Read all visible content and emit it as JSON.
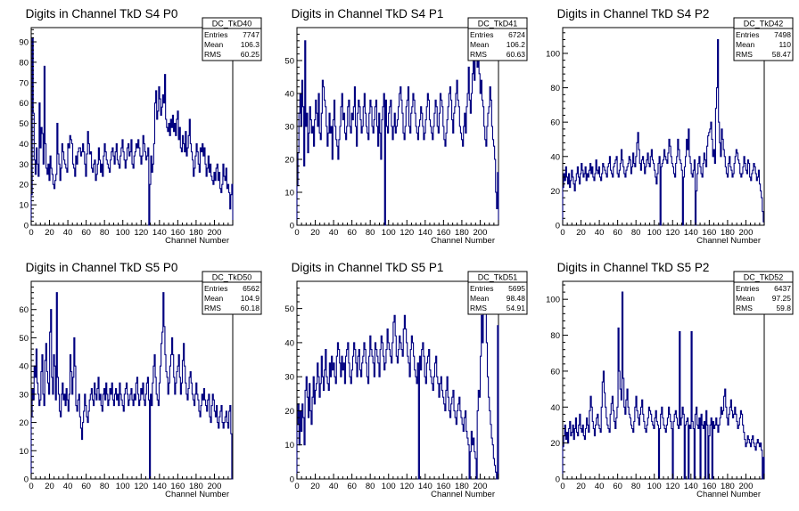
{
  "chart_data": [
    {
      "type": "histogram",
      "title": "Digits in Channel TkD S4 P0",
      "xlabel": "Channel Number",
      "ylabel": "",
      "xlim": [
        0,
        220
      ],
      "ylim": [
        0,
        97
      ],
      "xticks": [
        0,
        20,
        40,
        60,
        80,
        100,
        120,
        140,
        160,
        180,
        200
      ],
      "yticks": [
        0,
        10,
        20,
        30,
        40,
        50,
        60,
        70,
        80,
        90
      ],
      "stats": {
        "name": "DC_TkD40",
        "entries": "7747",
        "mean": "106.3",
        "rms": "60.25"
      },
      "stats_labels": {
        "entries": "Entries",
        "mean": "Mean",
        "rms": "RMS"
      },
      "values": [
        15,
        92,
        55,
        32,
        25,
        38,
        30,
        24,
        60,
        38,
        48,
        45,
        30,
        78,
        40,
        28,
        25,
        30,
        22,
        34,
        28,
        25,
        20,
        18,
        22,
        25,
        50,
        35,
        30,
        22,
        28,
        40,
        36,
        32,
        30,
        28,
        26,
        40,
        38,
        44,
        42,
        40,
        30,
        28,
        24,
        34,
        30,
        36,
        38,
        38,
        34,
        36,
        40,
        36,
        30,
        24,
        35,
        46,
        40,
        35,
        36,
        28,
        26,
        30,
        32,
        22,
        25,
        30,
        38,
        32,
        26,
        30,
        24,
        34,
        40,
        36,
        32,
        30,
        28,
        26,
        32,
        36,
        38,
        34,
        30,
        36,
        40,
        32,
        30,
        28,
        34,
        38,
        42,
        36,
        32,
        28,
        32,
        38,
        40,
        34,
        36,
        42,
        30,
        28,
        34,
        36,
        40,
        38,
        42,
        38,
        34,
        30,
        34,
        44,
        40,
        36,
        32,
        34,
        38,
        0,
        20,
        34,
        26,
        30,
        40,
        60,
        66,
        52,
        56,
        68,
        62,
        54,
        58,
        64,
        60,
        74,
        52,
        48,
        46,
        50,
        44,
        52,
        48,
        54,
        46,
        50,
        44,
        52,
        56,
        42,
        48,
        38,
        36,
        44,
        40,
        36,
        46,
        34,
        38,
        44,
        52,
        40,
        36,
        32,
        24,
        28,
        34,
        40,
        36,
        30,
        26,
        38,
        36,
        40,
        34,
        38,
        30,
        24,
        28,
        34,
        26,
        30,
        24,
        22,
        20,
        26,
        22,
        28,
        30,
        22,
        26,
        18,
        16,
        20,
        30,
        24,
        22,
        28,
        18,
        20,
        16,
        8,
        15,
        20
      ]
    },
    {
      "type": "histogram",
      "title": "Digits in Channel TkD S4 P1",
      "xlabel": "Channel Number",
      "ylabel": "",
      "xlim": [
        0,
        220
      ],
      "ylim": [
        0,
        60
      ],
      "xticks": [
        0,
        20,
        40,
        60,
        80,
        100,
        120,
        140,
        160,
        180,
        200
      ],
      "yticks": [
        0,
        10,
        20,
        30,
        40,
        50
      ],
      "stats": {
        "name": "DC_TkD41",
        "entries": "6724",
        "mean": "106.2",
        "rms": "60.63"
      },
      "stats_labels": {
        "entries": "Entries",
        "mean": "Mean",
        "rms": "RMS"
      },
      "values": [
        12,
        22,
        34,
        40,
        30,
        44,
        36,
        18,
        56,
        30,
        34,
        22,
        28,
        36,
        32,
        28,
        30,
        24,
        32,
        38,
        34,
        30,
        40,
        28,
        26,
        34,
        44,
        42,
        38,
        36,
        30,
        24,
        28,
        34,
        28,
        30,
        20,
        32,
        38,
        30,
        26,
        24,
        20,
        26,
        30,
        36,
        40,
        32,
        34,
        28,
        26,
        30,
        36,
        38,
        30,
        28,
        34,
        32,
        36,
        42,
        30,
        24,
        34,
        38,
        36,
        32,
        28,
        30,
        36,
        40,
        34,
        30,
        28,
        26,
        34,
        38,
        36,
        30,
        28,
        32,
        36,
        38,
        30,
        24,
        34,
        28,
        20,
        32,
        36,
        40,
        0,
        38,
        30,
        28,
        34,
        36,
        38,
        30,
        26,
        30,
        34,
        28,
        30,
        32,
        36,
        40,
        42,
        38,
        34,
        28,
        26,
        30,
        36,
        38,
        42,
        30,
        28,
        34,
        36,
        40,
        38,
        34,
        30,
        28,
        26,
        30,
        32,
        36,
        34,
        30,
        26,
        28,
        32,
        36,
        40,
        38,
        32,
        30,
        28,
        26,
        30,
        34,
        38,
        36,
        30,
        28,
        34,
        40,
        38,
        36,
        30,
        26,
        24,
        28,
        32,
        36,
        40,
        42,
        38,
        32,
        28,
        34,
        36,
        40,
        44,
        38,
        36,
        30,
        28,
        26,
        24,
        30,
        34,
        28,
        36,
        40,
        48,
        38,
        34,
        40,
        46,
        50,
        44,
        54,
        50,
        48,
        52,
        46,
        40,
        44,
        38,
        36,
        30,
        26,
        24,
        30,
        34,
        36,
        42,
        38,
        30,
        26,
        24,
        20,
        10,
        5,
        16
      ]
    },
    {
      "type": "histogram",
      "title": "Digits in Channel TkD S4 P2",
      "xlabel": "Channel Number",
      "ylabel": "",
      "xlim": [
        0,
        220
      ],
      "ylim": [
        0,
        115
      ],
      "xticks": [
        0,
        20,
        40,
        60,
        80,
        100,
        120,
        140,
        160,
        180,
        200
      ],
      "yticks": [
        0,
        20,
        40,
        60,
        80,
        100
      ],
      "stats": {
        "name": "DC_TkD42",
        "entries": "7498",
        "mean": "110",
        "rms": "58.47"
      },
      "stats_labels": {
        "entries": "Entries",
        "mean": "Mean",
        "rms": "RMS"
      },
      "values": [
        22,
        30,
        26,
        34,
        28,
        24,
        30,
        22,
        26,
        32,
        28,
        24,
        20,
        26,
        30,
        34,
        28,
        24,
        30,
        36,
        32,
        28,
        30,
        34,
        26,
        30,
        28,
        32,
        36,
        30,
        34,
        28,
        26,
        30,
        38,
        32,
        30,
        34,
        28,
        26,
        30,
        36,
        34,
        32,
        30,
        28,
        34,
        36,
        40,
        32,
        30,
        28,
        34,
        36,
        38,
        40,
        30,
        28,
        32,
        36,
        44,
        38,
        34,
        30,
        28,
        32,
        34,
        36,
        40,
        38,
        30,
        34,
        42,
        36,
        34,
        40,
        48,
        54,
        44,
        36,
        32,
        38,
        40,
        36,
        30,
        34,
        38,
        42,
        36,
        34,
        40,
        44,
        38,
        36,
        32,
        28,
        24,
        30,
        36,
        40,
        0,
        34,
        36,
        38,
        44,
        40,
        38,
        36,
        42,
        50,
        46,
        40,
        36,
        34,
        30,
        28,
        36,
        40,
        50,
        44,
        38,
        36,
        32,
        0,
        28,
        34,
        40,
        50,
        44,
        56,
        40,
        36,
        30,
        28,
        32,
        38,
        0,
        20,
        30,
        36,
        40,
        34,
        30,
        28,
        36,
        42,
        38,
        34,
        46,
        52,
        54,
        56,
        60,
        50,
        40,
        44,
        36,
        68,
        80,
        108,
        60,
        48,
        40,
        56,
        50,
        44,
        40,
        34,
        30,
        28,
        36,
        40,
        34,
        32,
        28,
        30,
        36,
        40,
        44,
        42,
        38,
        36,
        30,
        28,
        30,
        34,
        40,
        36,
        32,
        30,
        38,
        36,
        28,
        26,
        30,
        32,
        36,
        34,
        30,
        26,
        28,
        32,
        24,
        20,
        16,
        8,
        2
      ]
    },
    {
      "type": "histogram",
      "title": "Digits in Channel TkD S5 P0",
      "xlabel": "Channel Number",
      "ylabel": "",
      "xlim": [
        0,
        220
      ],
      "ylim": [
        0,
        70
      ],
      "xticks": [
        0,
        20,
        40,
        60,
        80,
        100,
        120,
        140,
        160,
        180,
        200
      ],
      "yticks": [
        0,
        10,
        20,
        30,
        40,
        50,
        60
      ],
      "stats": {
        "name": "DC_TkD50",
        "entries": "6562",
        "mean": "104.9",
        "rms": "60.18"
      },
      "stats_labels": {
        "entries": "Entries",
        "mean": "Mean",
        "rms": "RMS"
      },
      "values": [
        22,
        32,
        28,
        40,
        36,
        46,
        34,
        30,
        26,
        28,
        38,
        44,
        30,
        26,
        42,
        48,
        38,
        34,
        30,
        52,
        60,
        36,
        30,
        44,
        40,
        28,
        66,
        36,
        30,
        24,
        22,
        30,
        34,
        28,
        30,
        26,
        32,
        28,
        24,
        30,
        44,
        38,
        30,
        36,
        50,
        40,
        26,
        24,
        28,
        30,
        22,
        18,
        14,
        20,
        24,
        30,
        26,
        22,
        20,
        24,
        28,
        30,
        32,
        28,
        26,
        34,
        30,
        28,
        32,
        36,
        28,
        30,
        26,
        24,
        30,
        32,
        28,
        34,
        30,
        26,
        28,
        32,
        30,
        34,
        28,
        26,
        30,
        32,
        28,
        30,
        26,
        34,
        30,
        28,
        26,
        24,
        30,
        32,
        34,
        30,
        26,
        28,
        30,
        32,
        28,
        26,
        30,
        28,
        34,
        36,
        30,
        26,
        28,
        32,
        30,
        34,
        28,
        26,
        30,
        34,
        36,
        28,
        0,
        30,
        26,
        34,
        40,
        44,
        36,
        30,
        28,
        26,
        34,
        40,
        48,
        52,
        66,
        54,
        44,
        38,
        36,
        30,
        34,
        40,
        44,
        50,
        44,
        36,
        30,
        34,
        38,
        40,
        44,
        36,
        30,
        34,
        42,
        48,
        40,
        34,
        30,
        28,
        32,
        36,
        38,
        34,
        30,
        28,
        26,
        30,
        34,
        30,
        28,
        24,
        22,
        26,
        30,
        28,
        32,
        28,
        26,
        24,
        28,
        30,
        22,
        20,
        26,
        30,
        28,
        24,
        22,
        26,
        20,
        18,
        22,
        24,
        26,
        20,
        18,
        20,
        22,
        24,
        20,
        18,
        24,
        26,
        16,
        0
      ]
    },
    {
      "type": "histogram",
      "title": "Digits in Channel TkD S5 P1",
      "xlabel": "Channel Number",
      "ylabel": "",
      "xlim": [
        0,
        220
      ],
      "ylim": [
        0,
        58
      ],
      "xticks": [
        0,
        20,
        40,
        60,
        80,
        100,
        120,
        140,
        160,
        180,
        200
      ],
      "yticks": [
        0,
        10,
        20,
        30,
        40,
        50
      ],
      "stats": {
        "name": "DC_TkD51",
        "entries": "5695",
        "mean": "98.48",
        "rms": "54.91"
      },
      "stats_labels": {
        "entries": "Entries",
        "mean": "Mean",
        "rms": "RMS"
      },
      "values": [
        16,
        22,
        10,
        20,
        14,
        22,
        18,
        10,
        26,
        30,
        24,
        18,
        28,
        20,
        16,
        24,
        30,
        22,
        26,
        28,
        34,
        30,
        24,
        28,
        36,
        30,
        26,
        32,
        38,
        30,
        28,
        26,
        34,
        30,
        36,
        32,
        34,
        30,
        28,
        36,
        40,
        38,
        34,
        30,
        36,
        32,
        34,
        28,
        36,
        38,
        40,
        34,
        30,
        28,
        32,
        36,
        40,
        38,
        34,
        30,
        36,
        38,
        32,
        30,
        34,
        36,
        40,
        38,
        34,
        30,
        28,
        36,
        42,
        38,
        36,
        34,
        30,
        40,
        38,
        36,
        34,
        30,
        38,
        42,
        40,
        36,
        32,
        34,
        38,
        44,
        40,
        38,
        36,
        34,
        40,
        46,
        48,
        42,
        36,
        34,
        38,
        42,
        40,
        38,
        36,
        44,
        48,
        44,
        40,
        36,
        34,
        30,
        38,
        42,
        40,
        36,
        32,
        30,
        28,
        34,
        0,
        36,
        32,
        38,
        40,
        36,
        30,
        28,
        34,
        36,
        38,
        32,
        30,
        28,
        26,
        30,
        34,
        36,
        30,
        28,
        24,
        28,
        30,
        26,
        24,
        22,
        20,
        26,
        30,
        24,
        20,
        18,
        22,
        24,
        26,
        20,
        18,
        16,
        20,
        22,
        24,
        20,
        18,
        16,
        14,
        18,
        20,
        14,
        12,
        10,
        0,
        8,
        14,
        10,
        12,
        8,
        6,
        0,
        20,
        26,
        24,
        36,
        48,
        40,
        52,
        56,
        50,
        40,
        30,
        24,
        20,
        16,
        12,
        10,
        6,
        4,
        2,
        0,
        45
      ]
    },
    {
      "type": "histogram",
      "title": "Digits in Channel TkD S5 P2",
      "xlabel": "Channel Number",
      "ylabel": "",
      "xlim": [
        0,
        220
      ],
      "ylim": [
        0,
        110
      ],
      "xticks": [
        0,
        20,
        40,
        60,
        80,
        100,
        120,
        140,
        160,
        180,
        200
      ],
      "yticks": [
        0,
        20,
        40,
        60,
        80,
        100
      ],
      "stats": {
        "name": "DC_TkD52",
        "entries": "6437",
        "mean": "97.25",
        "rms": "59.8"
      },
      "stats_labels": {
        "entries": "Entries",
        "mean": "Mean",
        "rms": "RMS"
      },
      "values": [
        18,
        24,
        30,
        22,
        26,
        20,
        28,
        32,
        24,
        26,
        30,
        22,
        28,
        34,
        26,
        24,
        30,
        36,
        28,
        26,
        30,
        24,
        22,
        28,
        34,
        30,
        26,
        38,
        46,
        40,
        32,
        28,
        24,
        30,
        34,
        36,
        30,
        28,
        26,
        40,
        54,
        60,
        48,
        40,
        34,
        30,
        28,
        26,
        36,
        42,
        46,
        38,
        32,
        28,
        34,
        40,
        84,
        60,
        50,
        44,
        104,
        56,
        40,
        36,
        44,
        50,
        40,
        36,
        34,
        30,
        28,
        26,
        32,
        40,
        46,
        38,
        34,
        30,
        36,
        40,
        44,
        36,
        32,
        28,
        26,
        30,
        34,
        40,
        38,
        36,
        32,
        30,
        28,
        34,
        38,
        32,
        30,
        0,
        28,
        36,
        40,
        34,
        30,
        28,
        26,
        30,
        34,
        40,
        36,
        32,
        28,
        0,
        32,
        36,
        38,
        34,
        30,
        28,
        82,
        30,
        34,
        40,
        36,
        0,
        30,
        32,
        34,
        0,
        30,
        28,
        82,
        32,
        28,
        0,
        36,
        40,
        30,
        28,
        34,
        0,
        36,
        30,
        28,
        32,
        0,
        38,
        30,
        0,
        24,
        30,
        34,
        0,
        32,
        28,
        30,
        34,
        30,
        26,
        30,
        34,
        40,
        36,
        38,
        46,
        50,
        40,
        34,
        30,
        36,
        40,
        44,
        38,
        34,
        36,
        40,
        36,
        32,
        28,
        30,
        34,
        38,
        36,
        30,
        26,
        22,
        18,
        20,
        24,
        22,
        20,
        18,
        22,
        24,
        20,
        18,
        16,
        20,
        22,
        20,
        18,
        20,
        16,
        0,
        12
      ]
    }
  ]
}
